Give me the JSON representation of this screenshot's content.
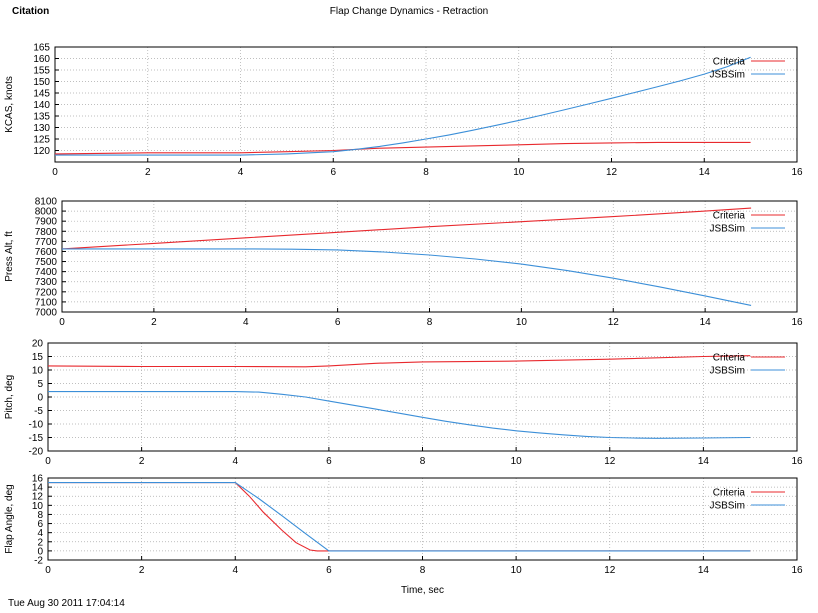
{
  "header": {
    "app_name": "Citation",
    "title": "Flap Change Dynamics - Retraction"
  },
  "footer": {
    "timestamp": "Tue Aug 30 2011 17:04:14"
  },
  "colors": {
    "criteria": "#e8292e",
    "jsbsim": "#3c8fd8",
    "grid": "#aaaaaa",
    "axis": "#000000"
  },
  "chart_data": [
    {
      "type": "line",
      "title": "",
      "xlabel": "",
      "ylabel": "KCAS, knots",
      "xlim": [
        0,
        16
      ],
      "ylim": [
        115,
        165
      ],
      "xticks": [
        0,
        2,
        4,
        6,
        8,
        10,
        12,
        14,
        16
      ],
      "yticks": [
        120,
        125,
        130,
        135,
        140,
        145,
        150,
        155,
        160,
        165
      ],
      "grid": true,
      "legend_position": "top-right",
      "series": [
        {
          "name": "Criteria",
          "color": "#e8292e",
          "x": [
            0,
            2,
            4,
            5,
            6,
            7,
            8,
            9,
            10,
            11,
            12,
            13,
            14,
            15
          ],
          "y": [
            118.5,
            119,
            119,
            119.5,
            120,
            121,
            121.5,
            122,
            122.5,
            123,
            123.3,
            123.5,
            123.5,
            123.5
          ]
        },
        {
          "name": "JSBSim",
          "color": "#3c8fd8",
          "x": [
            0,
            2,
            4,
            5,
            6,
            6.5,
            7,
            7.5,
            8,
            8.5,
            9,
            9.5,
            10,
            10.5,
            11,
            11.5,
            12,
            12.5,
            13,
            13.5,
            14,
            14.5,
            15
          ],
          "y": [
            118,
            118,
            118,
            118.5,
            119.5,
            120.5,
            121.8,
            123.3,
            125,
            126.8,
            128.8,
            130.9,
            133.1,
            135.4,
            137.8,
            140.2,
            142.7,
            145.2,
            147.8,
            150.4,
            153.2,
            156.5,
            160.5
          ]
        }
      ]
    },
    {
      "type": "line",
      "title": "",
      "xlabel": "",
      "ylabel": "Press Alt, ft",
      "xlim": [
        0,
        16
      ],
      "ylim": [
        7000,
        8100
      ],
      "xticks": [
        0,
        2,
        4,
        6,
        8,
        10,
        12,
        14,
        16
      ],
      "yticks": [
        7000,
        7100,
        7200,
        7300,
        7400,
        7500,
        7600,
        7700,
        7800,
        7900,
        8000,
        8100
      ],
      "grid": true,
      "legend_position": "top-right",
      "series": [
        {
          "name": "Criteria",
          "color": "#e8292e",
          "x": [
            0,
            2,
            4,
            6,
            8,
            10,
            12,
            14,
            15
          ],
          "y": [
            7625,
            7680,
            7735,
            7790,
            7845,
            7895,
            7945,
            8000,
            8030
          ]
        },
        {
          "name": "JSBSim",
          "color": "#3c8fd8",
          "x": [
            0,
            2,
            4,
            5,
            6,
            7,
            8,
            9,
            10,
            11,
            12,
            13,
            14,
            15
          ],
          "y": [
            7625,
            7625,
            7625,
            7622,
            7615,
            7595,
            7565,
            7525,
            7475,
            7410,
            7335,
            7250,
            7160,
            7065
          ]
        }
      ]
    },
    {
      "type": "line",
      "title": "",
      "xlabel": "",
      "ylabel": "Pitch, deg",
      "xlim": [
        0,
        16
      ],
      "ylim": [
        -20,
        20
      ],
      "xticks": [
        0,
        2,
        4,
        6,
        8,
        10,
        12,
        14,
        16
      ],
      "yticks": [
        -20,
        -15,
        -10,
        -5,
        0,
        5,
        10,
        15,
        20
      ],
      "grid": true,
      "legend_position": "top-right",
      "series": [
        {
          "name": "Criteria",
          "color": "#e8292e",
          "x": [
            0,
            2,
            4,
            5.5,
            6,
            7,
            8,
            10,
            12,
            14,
            15
          ],
          "y": [
            11.5,
            11.3,
            11.3,
            11.2,
            11.5,
            12.5,
            13,
            13.3,
            14,
            15,
            15.3
          ]
        },
        {
          "name": "JSBSim",
          "color": "#3c8fd8",
          "x": [
            0,
            2,
            4,
            4.5,
            5,
            5.5,
            6,
            6.5,
            7,
            7.5,
            8,
            8.5,
            9,
            9.5,
            10,
            10.5,
            11,
            11.5,
            12,
            12.5,
            13,
            14,
            15
          ],
          "y": [
            2,
            2,
            2,
            1.8,
            1,
            0,
            -1.5,
            -3,
            -4.5,
            -6,
            -7.5,
            -9,
            -10.3,
            -11.5,
            -12.5,
            -13.3,
            -14,
            -14.6,
            -15,
            -15.2,
            -15.3,
            -15.2,
            -15
          ]
        }
      ]
    },
    {
      "type": "line",
      "title": "",
      "xlabel": "Time, sec",
      "ylabel": "Flap Angle, deg",
      "xlim": [
        0,
        16
      ],
      "ylim": [
        -2,
        16
      ],
      "xticks": [
        0,
        2,
        4,
        6,
        8,
        10,
        12,
        14,
        16
      ],
      "yticks": [
        -2,
        0,
        2,
        4,
        6,
        8,
        10,
        12,
        14,
        16
      ],
      "grid": true,
      "legend_position": "top-right",
      "series": [
        {
          "name": "Criteria",
          "color": "#e8292e",
          "x": [
            0,
            4,
            4.3,
            4.6,
            5,
            5.3,
            5.6,
            5.75,
            6,
            15
          ],
          "y": [
            15,
            15,
            12,
            8.5,
            4.5,
            1.8,
            0.2,
            0,
            0,
            0
          ]
        },
        {
          "name": "JSBSim",
          "color": "#3c8fd8",
          "x": [
            0,
            4,
            4.5,
            5,
            5.5,
            6,
            15
          ],
          "y": [
            15,
            15,
            11.5,
            7.7,
            3.8,
            0,
            0
          ]
        }
      ]
    }
  ]
}
